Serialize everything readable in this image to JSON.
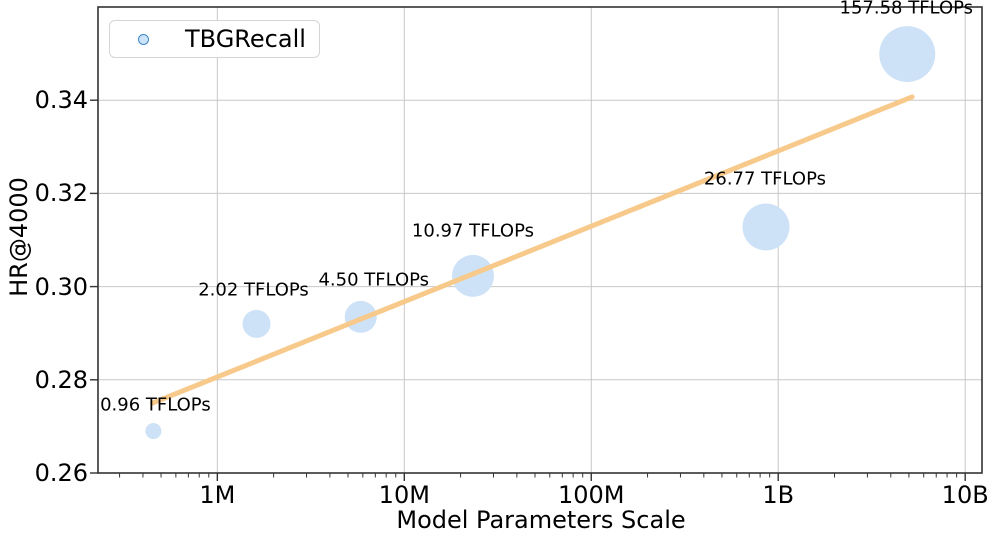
{
  "chart_data": {
    "type": "scatter",
    "title": "",
    "xlabel": "Model Parameters Scale",
    "ylabel": "HR@4000",
    "x_scale": "log",
    "grid": true,
    "legend_position": "upper left",
    "xlim": [
      230000,
      12300000000
    ],
    "ylim": [
      0.26,
      0.36
    ],
    "x_ticks": [
      {
        "value": 1000000,
        "label": "1M"
      },
      {
        "value": 10000000,
        "label": "10M"
      },
      {
        "value": 100000000,
        "label": "100M"
      },
      {
        "value": 1000000000,
        "label": "1B"
      },
      {
        "value": 10000000000,
        "label": "10B"
      }
    ],
    "y_ticks": [
      {
        "value": 0.26,
        "label": "0.26"
      },
      {
        "value": 0.28,
        "label": "0.28"
      },
      {
        "value": 0.3,
        "label": "0.30"
      },
      {
        "value": 0.32,
        "label": "0.32"
      },
      {
        "value": 0.34,
        "label": "0.34"
      }
    ],
    "legend": {
      "label": "TBGRecall"
    },
    "series": [
      {
        "name": "TBGRecall",
        "points": [
          {
            "x": 455000,
            "y": 0.269,
            "radius": 8,
            "label": "0.96 TFLOPs",
            "label_dx": 2,
            "label_dy": -18
          },
          {
            "x": 1620000,
            "y": 0.292,
            "radius": 14,
            "label": "2.02 TFLOPs",
            "label_dx": -3,
            "label_dy": -20
          },
          {
            "x": 5850000,
            "y": 0.2935,
            "radius": 16,
            "label": "4.50 TFLOPs",
            "label_dx": 13,
            "label_dy": -21
          },
          {
            "x": 23300000,
            "y": 0.3023,
            "radius": 21,
            "label": "10.97 TFLOPs",
            "label_dx": 0,
            "label_dy": -24
          },
          {
            "x": 860000000,
            "y": 0.3128,
            "radius": 23.5,
            "label": "26.77 TFLOPs",
            "label_dx": -1,
            "label_dy": -24
          },
          {
            "x": 4900000000,
            "y": 0.3499,
            "radius": 28,
            "label": "157.58 TFLOPs",
            "label_dx": -1,
            "label_dy": -18
          }
        ]
      }
    ],
    "trendline": {
      "x1": 450000,
      "y1": 0.275,
      "x2": 5200000000,
      "y2": 0.3407
    },
    "colors": {
      "bubble_fill": "#cde2f7",
      "legend_marker_edge": "#3f87c9",
      "legend_marker_fill": "#cde4f8",
      "trend": "#f7c98b",
      "grid": "#c8c8c8",
      "spine": "#333333",
      "tick": "#333333",
      "text": "#000000"
    }
  }
}
